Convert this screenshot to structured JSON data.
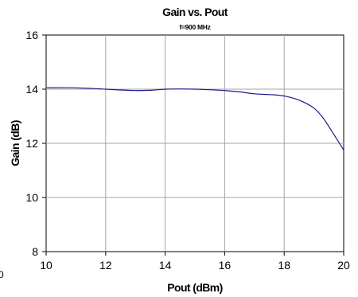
{
  "chart_data": {
    "type": "line",
    "title": "Gain vs. Pout",
    "subtitle": "f=900 MHz",
    "xlabel": "Pout (dBm)",
    "ylabel": "Gain (dB)",
    "xlim": [
      10,
      20
    ],
    "ylim": [
      8,
      16
    ],
    "x_ticks": [
      10,
      12,
      14,
      16,
      18,
      20
    ],
    "y_ticks": [
      8,
      10,
      12,
      14,
      16
    ],
    "grid": true,
    "legend": "none",
    "line_color": "#1a1a8c",
    "grid_color": "#a6a6a6",
    "series": [
      {
        "x": [
          10,
          11,
          12,
          12.5,
          13,
          13.5,
          14,
          14.5,
          15,
          15.5,
          16,
          16.5,
          17,
          17.5,
          17.8,
          18.2,
          18.6,
          19,
          19.3,
          19.6,
          20
        ],
        "y": [
          14.05,
          14.05,
          14.0,
          13.97,
          13.95,
          13.96,
          14.0,
          14.01,
          14.0,
          13.98,
          13.95,
          13.9,
          13.83,
          13.8,
          13.78,
          13.7,
          13.55,
          13.3,
          12.95,
          12.45,
          11.75
        ]
      }
    ]
  },
  "edge_mark": "0"
}
